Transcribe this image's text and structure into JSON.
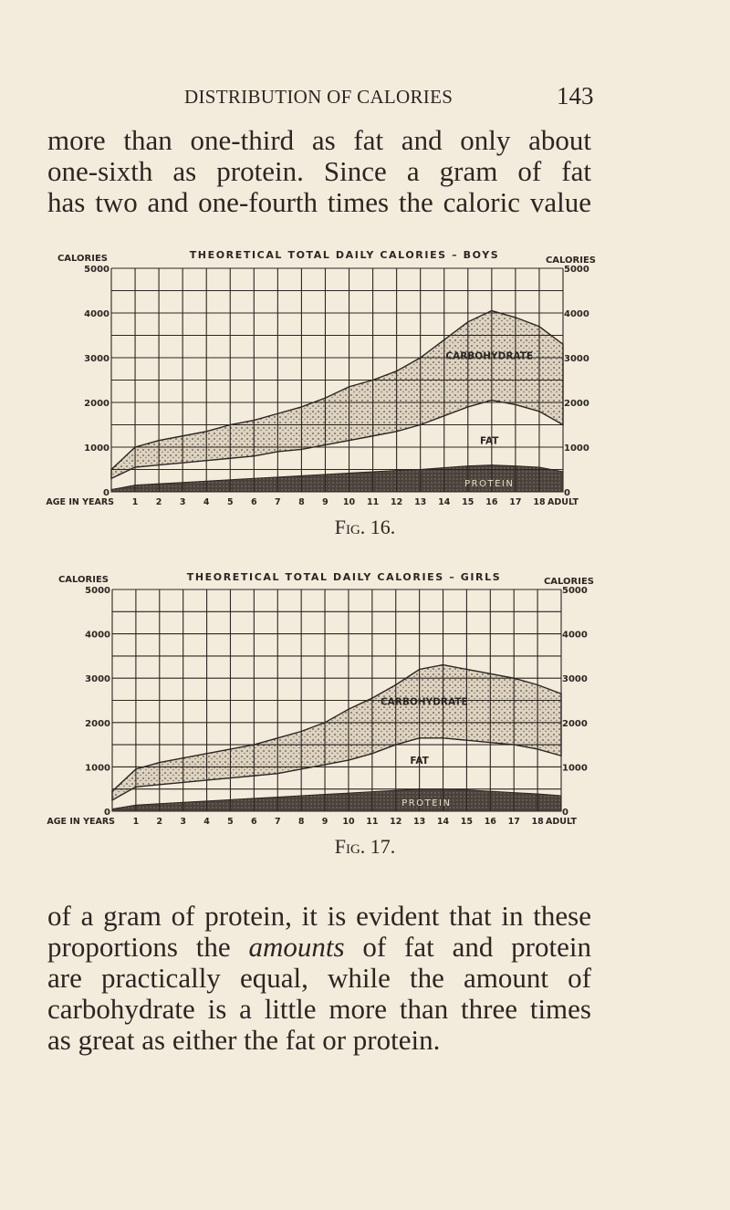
{
  "running_head": {
    "title": "DISTRIBUTION OF CALORIES",
    "page_number": "143"
  },
  "paragraph_top": {
    "lines": [
      "more than one-third as fat and only about",
      "one-sixth as protein.  Since a gram of fat",
      "has two and one-fourth times the caloric value"
    ]
  },
  "paragraph_bottom": {
    "lines": [
      {
        "pre": "of a gram of protein, it is evident that in these",
        "em": "",
        "post": ""
      },
      {
        "pre": "proportions the ",
        "em": "amounts",
        "post": " of fat and protein"
      },
      {
        "pre": "are practically equal, while the amount of",
        "em": "",
        "post": ""
      },
      {
        "pre": "carbohydrate is a little more than three times",
        "em": "",
        "post": ""
      },
      {
        "pre": "as great as either the fat or protein.",
        "em": "",
        "post": ""
      }
    ]
  },
  "figures": [
    {
      "caption": "Fig. 16.",
      "caption_prefix": "F",
      "caption_sc": "ig.",
      "caption_num": " 16."
    },
    {
      "caption": "Fig. 17.",
      "caption_prefix": "F",
      "caption_sc": "ig.",
      "caption_num": " 17."
    }
  ],
  "chart_data": [
    {
      "type": "area",
      "title": "THEORETICAL TOTAL DAILY CALORIES — BOYS",
      "xlabel": "AGE IN YEARS",
      "ylabel": "CALORIES",
      "ylabel_right": "CALORIES",
      "ylim": [
        0,
        5000
      ],
      "yticks": [
        0,
        1000,
        2000,
        3000,
        4000,
        5000
      ],
      "grid": true,
      "categories": [
        "0",
        "1",
        "2",
        "3",
        "4",
        "5",
        "6",
        "7",
        "8",
        "9",
        "10",
        "11",
        "12",
        "13",
        "14",
        "15",
        "16",
        "17",
        "18",
        "ADULT"
      ],
      "x_tick_labels": [
        "1",
        "2",
        "3",
        "4",
        "5",
        "6",
        "7",
        "8",
        "9",
        "10",
        "11",
        "12",
        "13",
        "14",
        "15",
        "16",
        "17",
        "18",
        "ADULT"
      ],
      "stacked": true,
      "series": [
        {
          "name": "PROTEIN",
          "values": [
            50,
            150,
            180,
            210,
            240,
            270,
            300,
            330,
            360,
            390,
            420,
            450,
            480,
            500,
            540,
            580,
            600,
            580,
            550,
            450
          ]
        },
        {
          "name": "FAT",
          "values": [
            250,
            400,
            420,
            440,
            460,
            480,
            500,
            570,
            590,
            660,
            730,
            800,
            870,
            1000,
            1160,
            1320,
            1450,
            1370,
            1250,
            1050
          ]
        },
        {
          "name": "CARBOHYDRATE",
          "values": [
            200,
            450,
            550,
            600,
            650,
            750,
            800,
            850,
            950,
            1050,
            1200,
            1250,
            1350,
            1500,
            1700,
            1900,
            2000,
            1950,
            1900,
            1800
          ]
        }
      ],
      "totals": [
        500,
        1000,
        1150,
        1250,
        1350,
        1500,
        1600,
        1750,
        1900,
        2100,
        2350,
        2500,
        2700,
        3000,
        3400,
        3800,
        4050,
        3900,
        3700,
        3300
      ],
      "annotations": [
        "CARBOHYDRATE",
        "FAT",
        "PROTEIN"
      ]
    },
    {
      "type": "area",
      "title": "THEORETICAL TOTAL DAILY CALORIES — GIRLS",
      "xlabel": "AGE IN YEARS",
      "ylabel": "CALORIES",
      "ylabel_right": "CALORIES",
      "ylim": [
        0,
        5000
      ],
      "yticks": [
        0,
        1000,
        2000,
        3000,
        4000,
        5000
      ],
      "grid": true,
      "categories": [
        "0",
        "1",
        "2",
        "3",
        "4",
        "5",
        "6",
        "7",
        "8",
        "9",
        "10",
        "11",
        "12",
        "13",
        "14",
        "15",
        "16",
        "17",
        "18",
        "ADULT"
      ],
      "x_tick_labels": [
        "1",
        "2",
        "3",
        "4",
        "5",
        "6",
        "7",
        "8",
        "9",
        "10",
        "11",
        "12",
        "13",
        "14",
        "15",
        "16",
        "17",
        "18",
        "ADULT"
      ],
      "stacked": true,
      "series": [
        {
          "name": "PROTEIN",
          "values": [
            50,
            140,
            170,
            200,
            230,
            260,
            290,
            320,
            350,
            380,
            410,
            440,
            470,
            500,
            500,
            480,
            450,
            420,
            390,
            350
          ]
        },
        {
          "name": "FAT",
          "values": [
            200,
            410,
            430,
            450,
            470,
            490,
            510,
            530,
            600,
            670,
            740,
            860,
            1030,
            1150,
            1150,
            1120,
            1100,
            1080,
            1010,
            900
          ]
        },
        {
          "name": "CARBOHYDRATE",
          "values": [
            200,
            400,
            500,
            550,
            600,
            650,
            700,
            800,
            850,
            950,
            1150,
            1250,
            1350,
            1550,
            1650,
            1600,
            1550,
            1500,
            1450,
            1400
          ]
        }
      ],
      "totals": [
        450,
        950,
        1100,
        1200,
        1300,
        1400,
        1500,
        1650,
        1800,
        2000,
        2300,
        2550,
        2850,
        3200,
        3300,
        3200,
        3100,
        3000,
        2850,
        2650
      ],
      "annotations": [
        "CARBOHYDRATE",
        "FAT",
        "PROTEIN"
      ]
    }
  ]
}
